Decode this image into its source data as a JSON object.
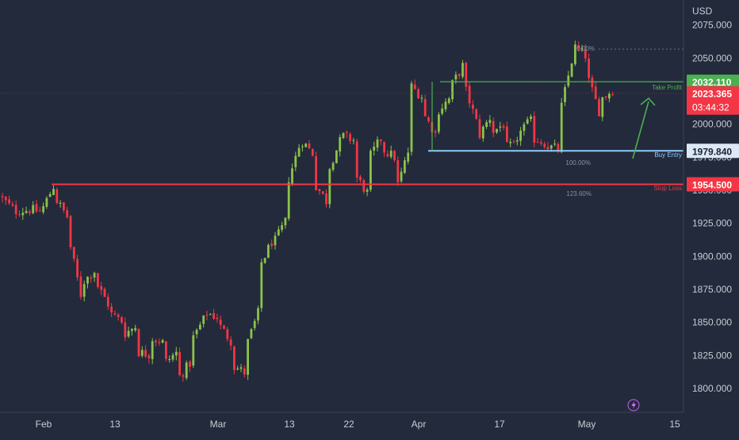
{
  "chart_data": {
    "type": "candlestick",
    "currency": "USD",
    "y_ticks": [
      1800,
      1825,
      1850,
      1875,
      1900,
      1925,
      1950,
      1975,
      2000,
      2025,
      2050,
      2075
    ],
    "y_tick_labels": [
      "1800.000",
      "1825.000",
      "1850.000",
      "1875.000",
      "1900.000",
      "1925.000",
      "1950.000",
      "1975.000",
      "2000.000",
      "2025.000",
      "2050.000",
      "2075.000"
    ],
    "x_tick_labels": [
      "Feb",
      "13",
      "Mar",
      "13",
      "22",
      "Apr",
      "17",
      "May",
      "15"
    ],
    "ylim": [
      1782,
      2094
    ],
    "price_path": [
      [
        1946,
        1936
      ],
      [
        1934,
        1935
      ],
      [
        1936,
        1934
      ],
      [
        1932,
        1953
      ],
      [
        1946,
        1930
      ],
      [
        1919,
        1871
      ],
      [
        1879,
        1889
      ],
      [
        1882,
        1864
      ],
      [
        1858,
        1851
      ],
      [
        1840,
        1847
      ],
      [
        1828,
        1826
      ],
      [
        1839,
        1835
      ],
      [
        1818,
        1827
      ],
      [
        1806,
        1819
      ],
      [
        1834,
        1852
      ],
      [
        1858,
        1854
      ],
      [
        1850,
        1836
      ],
      [
        1818,
        1812
      ],
      [
        1828,
        1857
      ],
      [
        1890,
        1911
      ],
      [
        1907,
        1926
      ],
      [
        1951,
        1983
      ],
      [
        1990,
        1978
      ],
      [
        1957,
        1942
      ],
      [
        1962,
        1987
      ],
      [
        1992,
        1988
      ],
      [
        1963,
        1948
      ],
      [
        1972,
        1989
      ],
      [
        1982,
        1975
      ],
      [
        1946,
        1979
      ],
      [
        2031,
        2021
      ],
      [
        2010,
        1993
      ],
      [
        2008,
        2019
      ],
      [
        2026,
        2044
      ],
      [
        2033,
        2002
      ],
      [
        1988,
        2005
      ],
      [
        1993,
        2000
      ],
      [
        1982,
        1984
      ],
      [
        1996,
        2002
      ],
      [
        1990,
        1986
      ],
      [
        1984,
        1981
      ],
      [
        2002,
        2048
      ],
      [
        2060,
        2052
      ],
      [
        2040,
        2010
      ],
      [
        2018,
        2026
      ]
    ],
    "last_index": 44,
    "levels": [
      {
        "name": "Take Profit",
        "price": 2032.11,
        "label": "2032.110",
        "color": "#4caf50"
      },
      {
        "name": "Buy Entry",
        "price": 1979.84,
        "label": "1979.840",
        "color": "#90caf9"
      },
      {
        "name": "Stop Loss",
        "price": 1954.5,
        "label": "1954.500",
        "color": "#f23645"
      }
    ],
    "last_price": {
      "label": "2023.365",
      "countdown": "03:44:32",
      "price": 2023.365,
      "color": "#f23645"
    },
    "fib_labels": [
      "0.00%",
      "100.00%",
      "123.60%"
    ],
    "grid": false
  },
  "colors": {
    "background": "#232a3b",
    "up": "#8bc34a",
    "down": "#f23645",
    "axis_text": "#c9ccd4",
    "fib_text": "#8a8f9c"
  },
  "icons": {
    "flash": "lightning-icon"
  }
}
